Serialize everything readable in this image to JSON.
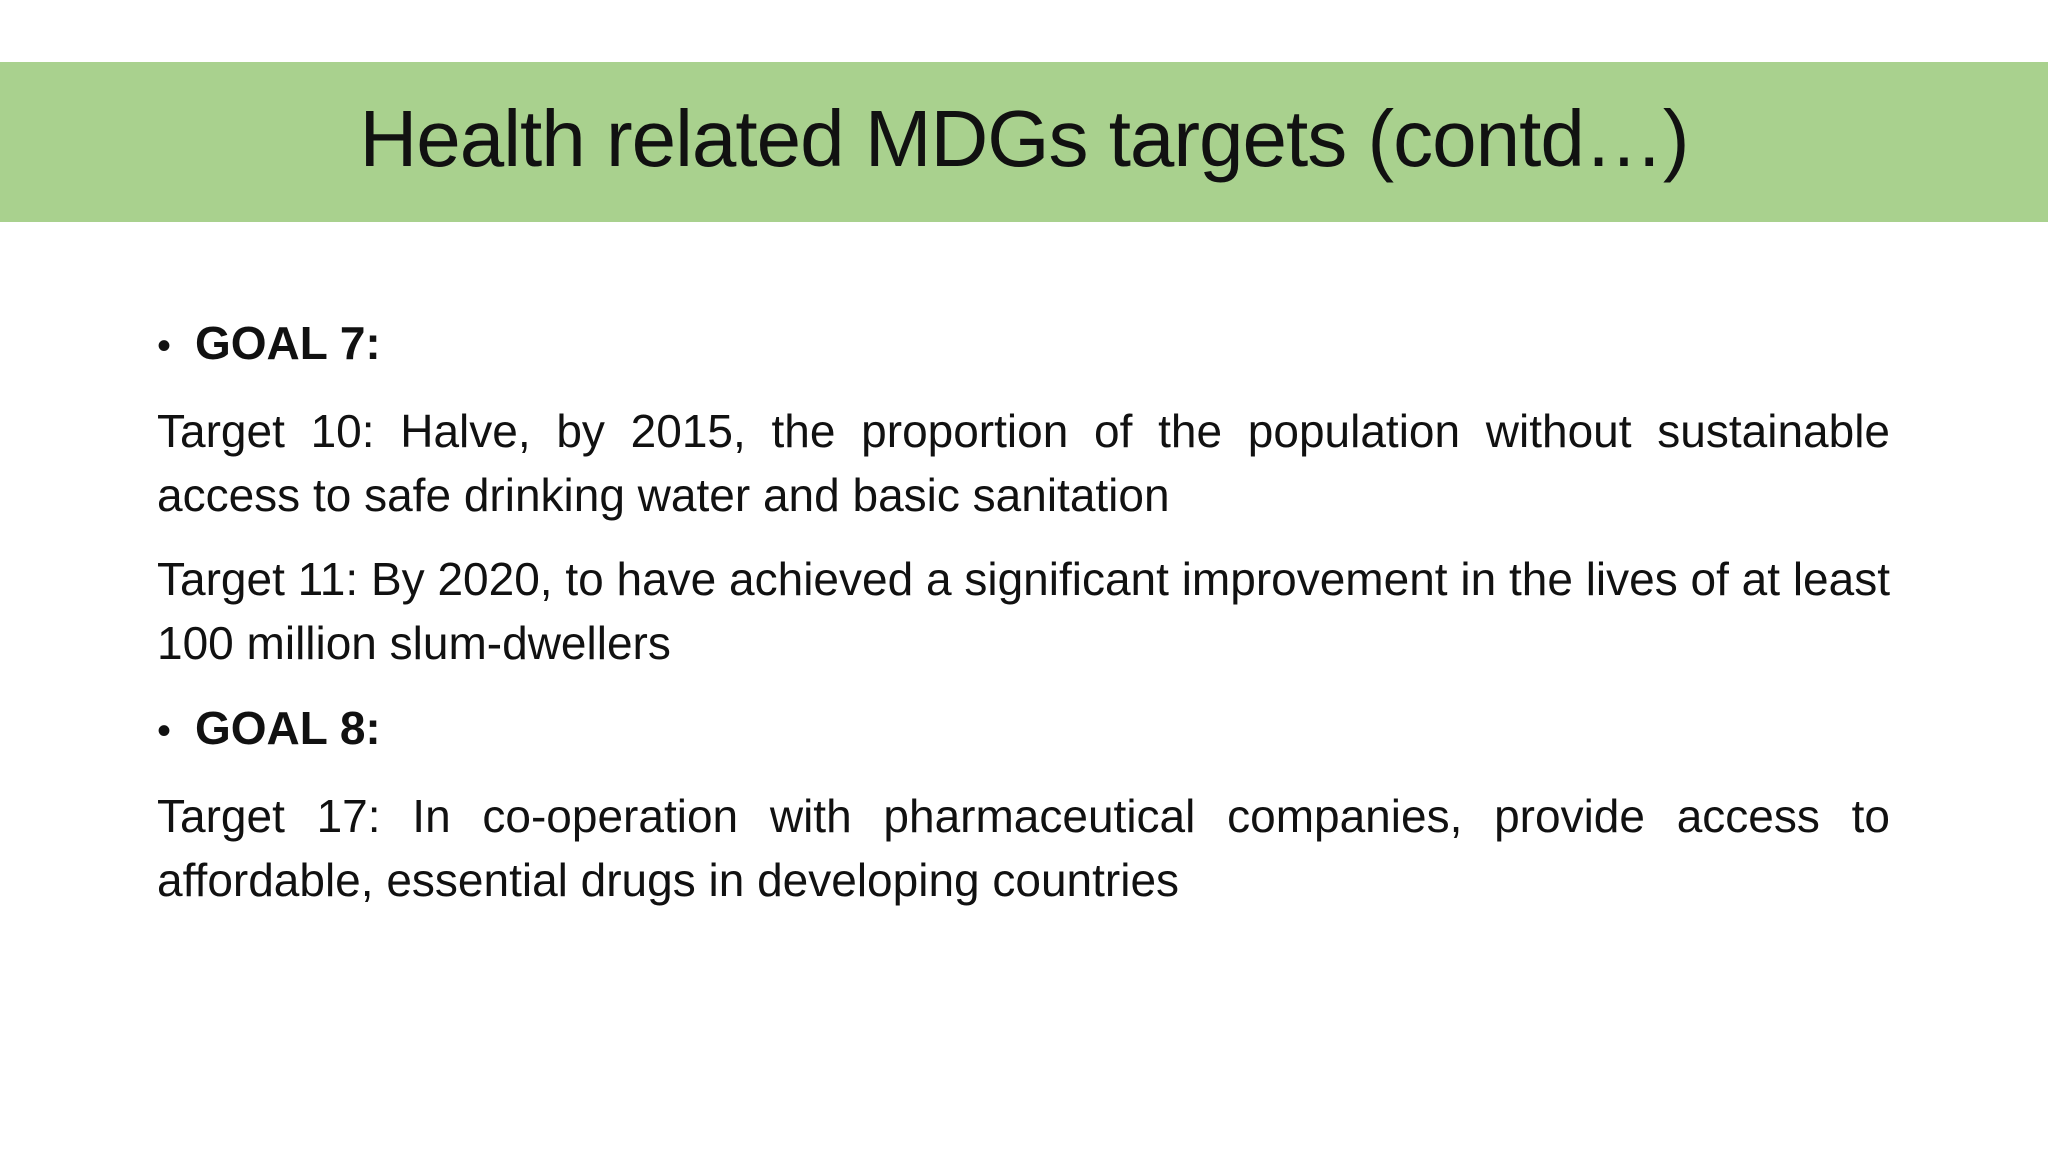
{
  "slide": {
    "title": "Health related MDGs targets (contd…)",
    "title_band_color": "#a9d18e",
    "sections": [
      {
        "bullet": "•",
        "heading": "GOAL 7:",
        "targets": [
          "Target 10: Halve, by 2015, the proportion of the population without sustainable access to safe drinking water and basic sanitation",
          "Target 11: By 2020, to have achieved a significant improvement in the lives of at least 100 million slum-dwellers"
        ]
      },
      {
        "bullet": "•",
        "heading": "GOAL 8:",
        "targets": [
          "Target 17: In co-operation with pharmaceutical companies, provide access to affordable, essential drugs in developing countries"
        ]
      }
    ]
  }
}
